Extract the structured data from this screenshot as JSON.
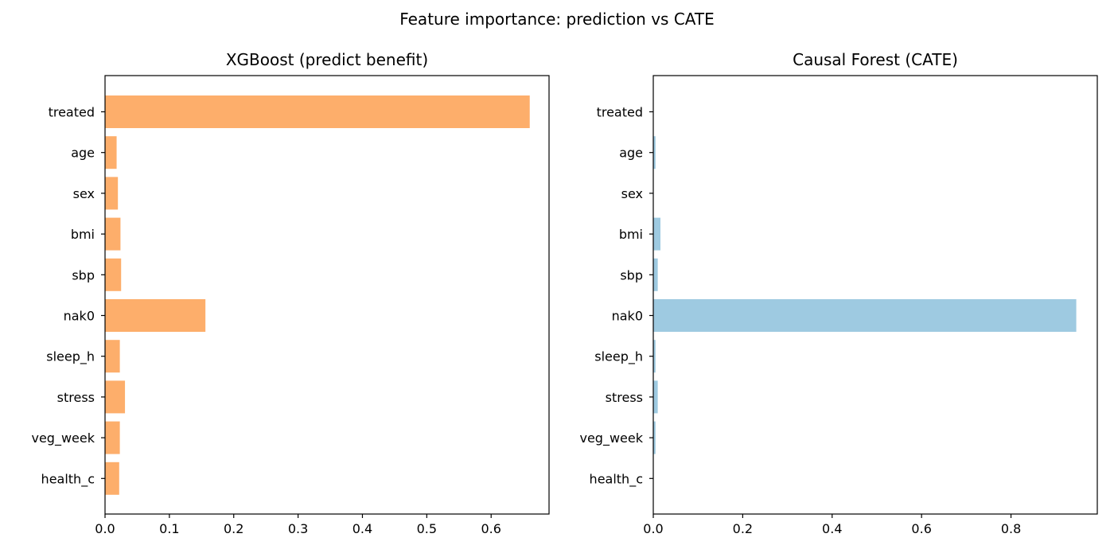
{
  "suptitle": "Feature importance: prediction vs CATE",
  "chart_data": [
    {
      "type": "bar",
      "orientation": "horizontal",
      "title": "XGBoost (predict benefit)",
      "categories": [
        "treated",
        "age",
        "sex",
        "bmi",
        "sbp",
        "nak0",
        "sleep_h",
        "stress",
        "veg_week",
        "health_c"
      ],
      "values": [
        0.66,
        0.018,
        0.02,
        0.024,
        0.025,
        0.156,
        0.023,
        0.031,
        0.023,
        0.022
      ],
      "xlim": [
        0,
        0.69
      ],
      "xticks": [
        0.0,
        0.1,
        0.2,
        0.3,
        0.4,
        0.5,
        0.6
      ],
      "xtick_labels": [
        "0.0",
        "0.1",
        "0.2",
        "0.3",
        "0.4",
        "0.5",
        "0.6"
      ],
      "color": "#fdae6b",
      "grid": false,
      "xlabel": "",
      "ylabel": ""
    },
    {
      "type": "bar",
      "orientation": "horizontal",
      "title": "Causal Forest (CATE)",
      "categories": [
        "treated",
        "age",
        "sex",
        "bmi",
        "sbp",
        "nak0",
        "sleep_h",
        "stress",
        "veg_week",
        "health_c"
      ],
      "values": [
        0.0,
        0.005,
        0.0,
        0.016,
        0.01,
        0.946,
        0.005,
        0.01,
        0.005,
        0.0
      ],
      "xlim": [
        0,
        0.993
      ],
      "xticks": [
        0.0,
        0.2,
        0.4,
        0.6,
        0.8
      ],
      "xtick_labels": [
        "0.0",
        "0.2",
        "0.4",
        "0.6",
        "0.8"
      ],
      "color": "#9ecae1",
      "grid": false,
      "xlabel": "",
      "ylabel": ""
    }
  ]
}
